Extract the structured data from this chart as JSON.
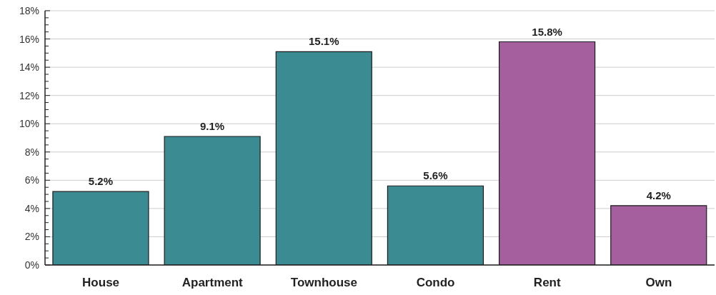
{
  "chart_data": {
    "type": "bar",
    "categories": [
      "House",
      "Apartment",
      "Townhouse",
      "Condo",
      "Rent",
      "Own"
    ],
    "values": [
      5.2,
      9.1,
      15.1,
      5.6,
      15.8,
      4.2
    ],
    "colors": [
      "#3b8b92",
      "#3b8b92",
      "#3b8b92",
      "#3b8b92",
      "#a55f9f",
      "#a55f9f"
    ],
    "value_labels": [
      "5.2%",
      "9.1%",
      "15.1%",
      "5.6%",
      "15.8%",
      "4.2%"
    ],
    "ylim": [
      0,
      18
    ],
    "yticks": [
      {
        "value": 0,
        "label": "0%"
      },
      {
        "value": 0.5,
        "label": null
      },
      {
        "value": 1,
        "label": null
      },
      {
        "value": 1.5,
        "label": null
      },
      {
        "value": 2,
        "label": "2%"
      },
      {
        "value": 2.5,
        "label": null
      },
      {
        "value": 3,
        "label": null
      },
      {
        "value": 3.5,
        "label": null
      },
      {
        "value": 4,
        "label": "4%"
      },
      {
        "value": 4.5,
        "label": null
      },
      {
        "value": 5,
        "label": null
      },
      {
        "value": 5.5,
        "label": null
      },
      {
        "value": 6,
        "label": "6%"
      },
      {
        "value": 6.5,
        "label": null
      },
      {
        "value": 7,
        "label": null
      },
      {
        "value": 7.5,
        "label": null
      },
      {
        "value": 8,
        "label": "8%"
      },
      {
        "value": 8.5,
        "label": null
      },
      {
        "value": 9,
        "label": null
      },
      {
        "value": 9.5,
        "label": null
      },
      {
        "value": 10,
        "label": "10%"
      },
      {
        "value": 10.5,
        "label": null
      },
      {
        "value": 11,
        "label": null
      },
      {
        "value": 11.5,
        "label": null
      },
      {
        "value": 12,
        "label": "12%"
      },
      {
        "value": 12.5,
        "label": null
      },
      {
        "value": 13,
        "label": null
      },
      {
        "value": 13.5,
        "label": null
      },
      {
        "value": 14,
        "label": "14%"
      },
      {
        "value": 14.5,
        "label": null
      },
      {
        "value": 15,
        "label": null
      },
      {
        "value": 15.5,
        "label": null
      },
      {
        "value": 16,
        "label": "16%"
      },
      {
        "value": 16.5,
        "label": null
      },
      {
        "value": 17,
        "label": null
      },
      {
        "value": 17.5,
        "label": null
      },
      {
        "value": 18,
        "label": "18%"
      }
    ],
    "grid": "y"
  }
}
